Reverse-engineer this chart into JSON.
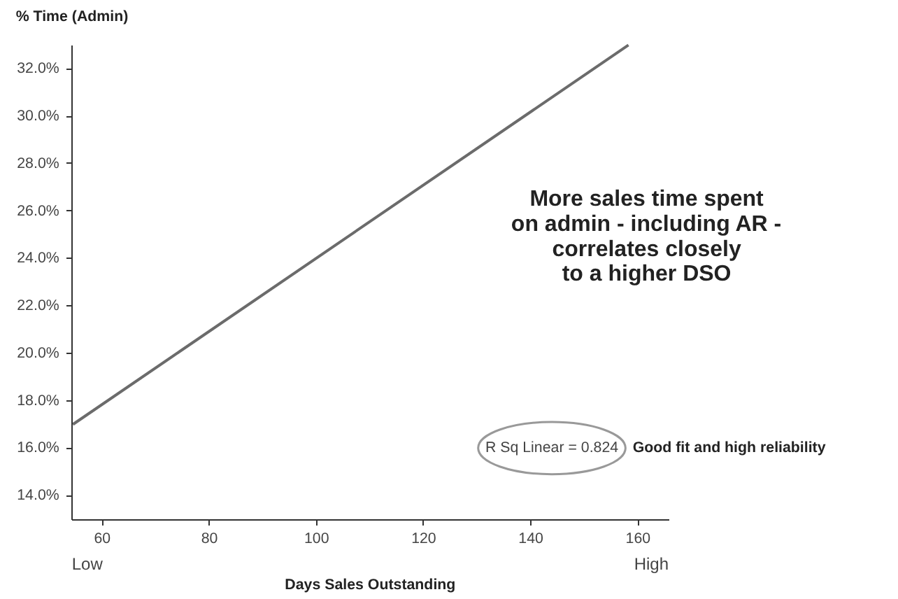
{
  "chart_data": {
    "type": "line",
    "ylabel": "% Time (Admin)",
    "xlabel": "Days Sales Outstanding",
    "x": [
      54.5,
      158.2
    ],
    "series": [
      {
        "color": "#6b6b6b",
        "values": [
          17.0,
          33.0
        ]
      }
    ],
    "xlim": [
      54.3,
      165.7
    ],
    "ylim": [
      13.0,
      33.0
    ],
    "xticks": [
      60,
      80,
      100,
      120,
      140,
      160
    ],
    "yticks": [
      {
        "value": 14,
        "label": "14.0%"
      },
      {
        "value": 16,
        "label": "16.0%"
      },
      {
        "value": 18,
        "label": "18.0%"
      },
      {
        "value": 20,
        "label": "20.0%"
      },
      {
        "value": 22,
        "label": "22.0%"
      },
      {
        "value": 24,
        "label": "24.0%"
      },
      {
        "value": 26,
        "label": "26.0%"
      },
      {
        "value": 28,
        "label": "28.0%"
      },
      {
        "value": 30,
        "label": "30.0%"
      },
      {
        "value": 32,
        "label": "32.0%"
      }
    ],
    "grid": false,
    "marker": "none",
    "line_style": "solid",
    "annotations": [
      "More sales time spent\non admin - including AR -\ncorrelates closely\nto a higher DSO",
      "R Sq Linear = 0.824",
      "Good fit and high reliability",
      "Low",
      "High"
    ]
  }
}
